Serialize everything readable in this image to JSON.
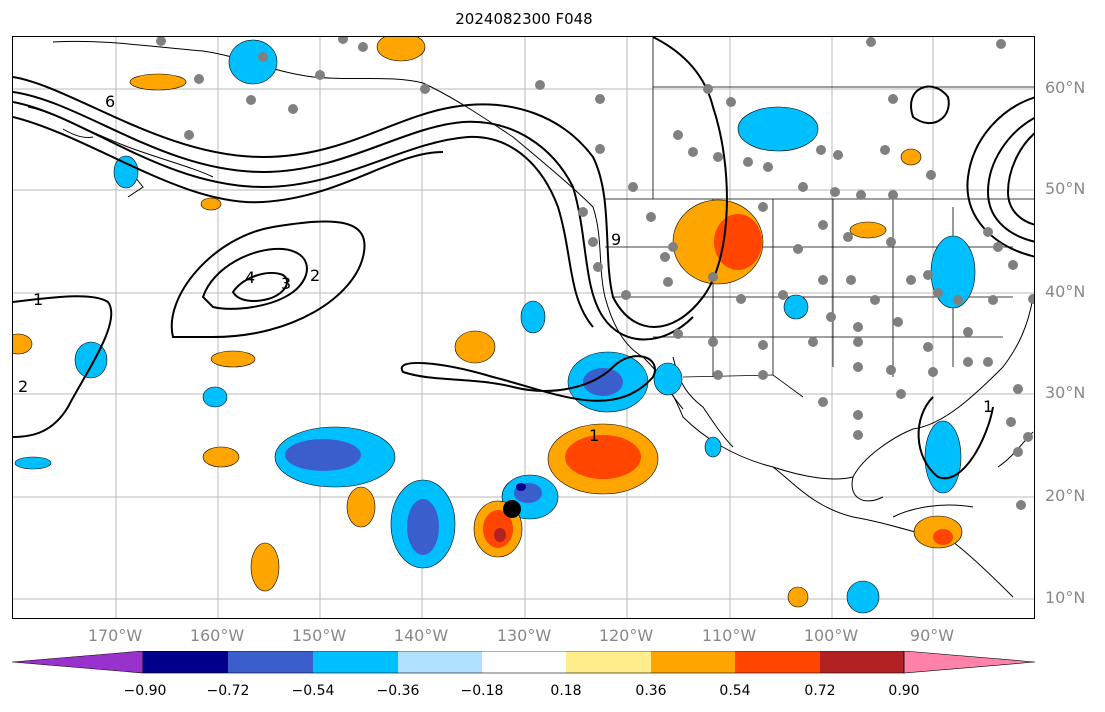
{
  "title": "2024082300 F048",
  "map": {
    "lon_labels": [
      "170°W",
      "160°W",
      "150°W",
      "140°W",
      "130°W",
      "120°W",
      "110°W",
      "100°W",
      "90°W"
    ],
    "lon_values": [
      -170,
      -160,
      -150,
      -140,
      -130,
      -120,
      -110,
      -100,
      -90
    ],
    "lat_labels": [
      "60°N",
      "50°N",
      "40°N",
      "30°N",
      "20°N",
      "10°N"
    ],
    "lat_values": [
      60,
      50,
      40,
      30,
      20,
      10
    ],
    "extent": {
      "lon_min": -180,
      "lon_max": -80,
      "lat_min": 8,
      "lat_max": 65
    },
    "contour_labels": [
      "1",
      "2",
      "3",
      "4",
      "6",
      "1",
      "9",
      "2",
      "1"
    ],
    "storm_marker_color": "#000000",
    "station_color": "#808080"
  },
  "colorbar": {
    "colors": [
      "#9932cc",
      "#00008b",
      "#3a5fcd",
      "#00bfff",
      "#b0e2ff",
      "#ffffff",
      "#ffec8b",
      "#ffa500",
      "#ff4500",
      "#b22222",
      "#ff82ab"
    ],
    "ticks": [
      "−0.90",
      "−0.72",
      "−0.54",
      "−0.36",
      "−0.18",
      "0.18",
      "0.36",
      "0.54",
      "0.72",
      "0.90"
    ]
  }
}
